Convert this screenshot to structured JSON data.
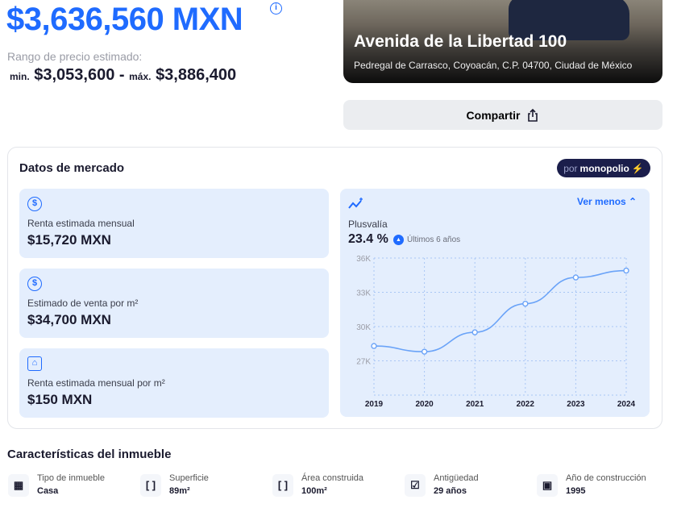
{
  "price": {
    "value": "$3,636,560 MXN",
    "range_label": "Rango de precio estimado:",
    "min_label": "min.",
    "min": "$3,053,600",
    "sep": "-",
    "max_label": "máx.",
    "max": "$3,886,400"
  },
  "property": {
    "title": "Avenida de la Libertad 100",
    "address": "Pedregal de Carrasco, Coyoacán, C.P. 04700, Ciudad de México"
  },
  "share_label": "Compartir",
  "market": {
    "title": "Datos de mercado",
    "badge_por": "por",
    "badge_brand": "monopolio",
    "cards": [
      {
        "label": "Renta estimada mensual",
        "value": "$15,720 MXN",
        "icon": "dollar-circle-icon"
      },
      {
        "label": "Estimado de venta por m²",
        "value": "$34,700 MXN",
        "icon": "dollar-circle-icon"
      },
      {
        "label": "Renta estimada mensual por m²",
        "value": "$150 MXN",
        "icon": "house-dollar-icon"
      }
    ],
    "toggle_label": "Ver menos",
    "plusvalia_label": "Plusvalía",
    "plusvalia_value": "23.4 %",
    "plusvalia_period": "Últimos 6 años"
  },
  "chart_data": {
    "type": "line",
    "title": "Plusvalía",
    "x": [
      "2019",
      "2020",
      "2021",
      "2022",
      "2023",
      "2024"
    ],
    "values": [
      28.3,
      27.8,
      29.5,
      32.0,
      34.3,
      34.9
    ],
    "yticks": [
      "36K",
      "33K",
      "30K",
      "27K"
    ],
    "ytick_values": [
      36,
      33,
      30,
      27
    ],
    "ylim": [
      24,
      36
    ],
    "grid": true,
    "color": "#6aa3f8"
  },
  "features": {
    "title": "Características del inmueble",
    "items": [
      {
        "label": "Tipo de inmueble",
        "value": "Casa",
        "icon": "building-icon"
      },
      {
        "label": "Superficie",
        "value": "89m²",
        "icon": "brackets-icon"
      },
      {
        "label": "Área construida",
        "value": "100m²",
        "icon": "brackets-icon"
      },
      {
        "label": "Antigüedad",
        "value": "29 años",
        "icon": "calendar-check-icon"
      },
      {
        "label": "Año de construcción",
        "value": "1995",
        "icon": "calendar-icon"
      }
    ]
  }
}
